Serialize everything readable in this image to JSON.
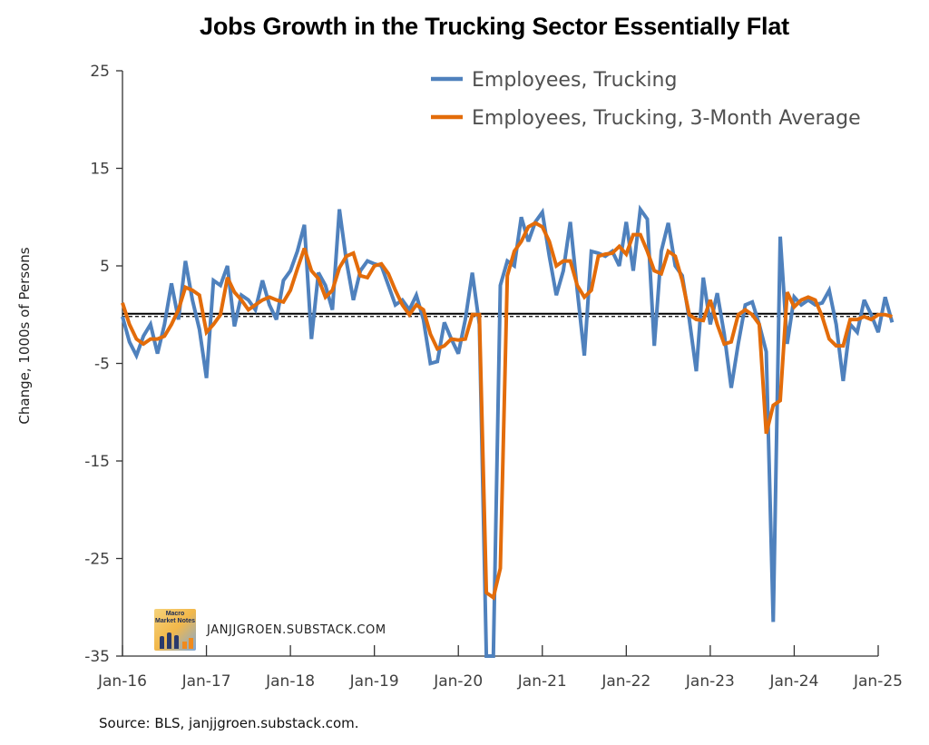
{
  "chart_data": {
    "type": "line",
    "title": "Jobs Growth in the Trucking Sector Essentially Flat",
    "xlabel": "",
    "ylabel": "Change, 1000s of Persons",
    "ylim": [
      -35,
      25
    ],
    "yticks": [
      25,
      15,
      5,
      -5,
      -15,
      -25,
      -35
    ],
    "xlim": [
      "Jan-16",
      "Jan-25"
    ],
    "xticks": [
      "Jan-16",
      "Jan-17",
      "Jan-18",
      "Jan-19",
      "Jan-20",
      "Jan-21",
      "Jan-22",
      "Jan-23",
      "Jan-24",
      "Jan-25"
    ],
    "x_start": "2016-01",
    "x_frequency": "monthly",
    "reference_line": 0,
    "grid": false,
    "legend_position": "top-right",
    "series": [
      {
        "name": "Employees, Trucking",
        "color": "#4f81bd",
        "values": [
          -0.2,
          -2.8,
          -4.2,
          -2.2,
          -1.0,
          -4.0,
          -1.0,
          3.2,
          -0.5,
          5.5,
          1.5,
          -1.5,
          -6.5,
          3.5,
          3.0,
          5.0,
          -1.2,
          2.0,
          1.5,
          0.5,
          3.5,
          1.0,
          -0.5,
          3.5,
          4.5,
          6.5,
          9.2,
          -2.5,
          4.3,
          3.0,
          0.5,
          10.8,
          5.5,
          1.5,
          4.5,
          5.5,
          5.2,
          5.0,
          3.0,
          1.0,
          1.5,
          0.5,
          2.0,
          -0.5,
          -5.0,
          -4.8,
          -0.8,
          -2.5,
          -4.0,
          -0.5,
          4.3,
          -1.0,
          -36.0,
          -36.0,
          3.0,
          5.5,
          5.0,
          10.0,
          7.5,
          9.5,
          10.5,
          6.0,
          2.0,
          4.5,
          9.5,
          2.5,
          -4.2,
          6.5,
          6.3,
          6.0,
          6.5,
          5.0,
          9.5,
          4.5,
          10.8,
          9.8,
          -3.2,
          6.5,
          9.4,
          5.0,
          4.0,
          -0.5,
          -5.8,
          3.8,
          -1.0,
          2.2,
          -2.0,
          -7.5,
          -3.0,
          1.0,
          1.3,
          -1.0,
          -3.8,
          -31.5,
          8.0,
          -3.0,
          1.8,
          1.0,
          1.5,
          1.0,
          1.2,
          2.5,
          -1.0,
          -6.8,
          -1.0,
          -1.8,
          1.5,
          0.0,
          -1.8,
          1.8,
          -0.8
        ]
      },
      {
        "name": "Employees, Trucking, 3-Month Average",
        "color": "#e36c0a",
        "values": [
          1.2,
          -1.0,
          -2.5,
          -3.0,
          -2.5,
          -2.5,
          -2.2,
          -1.0,
          0.5,
          2.8,
          2.5,
          2.0,
          -1.8,
          -1.0,
          0.0,
          3.8,
          2.3,
          1.5,
          0.5,
          1.0,
          1.5,
          1.8,
          1.5,
          1.3,
          2.5,
          4.7,
          6.8,
          4.5,
          3.7,
          1.8,
          2.5,
          4.8,
          6.0,
          6.3,
          4.0,
          3.8,
          5.0,
          5.2,
          4.2,
          2.5,
          1.0,
          0.0,
          1.0,
          0.5,
          -2.0,
          -3.5,
          -3.2,
          -2.5,
          -2.6,
          -2.5,
          0.0,
          0.0,
          -28.5,
          -29.0,
          -26.0,
          4.0,
          6.5,
          7.5,
          9.0,
          9.4,
          9.0,
          7.5,
          5.0,
          5.5,
          5.5,
          3.0,
          1.8,
          2.5,
          6.0,
          6.2,
          6.3,
          7.0,
          6.2,
          8.2,
          8.2,
          6.5,
          4.5,
          4.2,
          6.5,
          6.0,
          3.5,
          0.0,
          -0.5,
          -0.6,
          1.5,
          -1.0,
          -3.0,
          -2.8,
          0.0,
          0.5,
          0.0,
          -1.0,
          -12.2,
          -9.3,
          -8.8,
          2.3,
          0.8,
          1.5,
          1.8,
          1.5,
          -0.2,
          -2.5,
          -3.2,
          -3.2,
          -0.5,
          -0.5,
          -0.2,
          -0.5,
          0.0,
          0.0,
          -0.2
        ]
      }
    ]
  },
  "watermark": {
    "logo_text": "Macro Market Notes",
    "text": "JANJJGROEN.SUBSTACK.COM"
  },
  "source": "Source: BLS, janjjgroen.substack.com."
}
